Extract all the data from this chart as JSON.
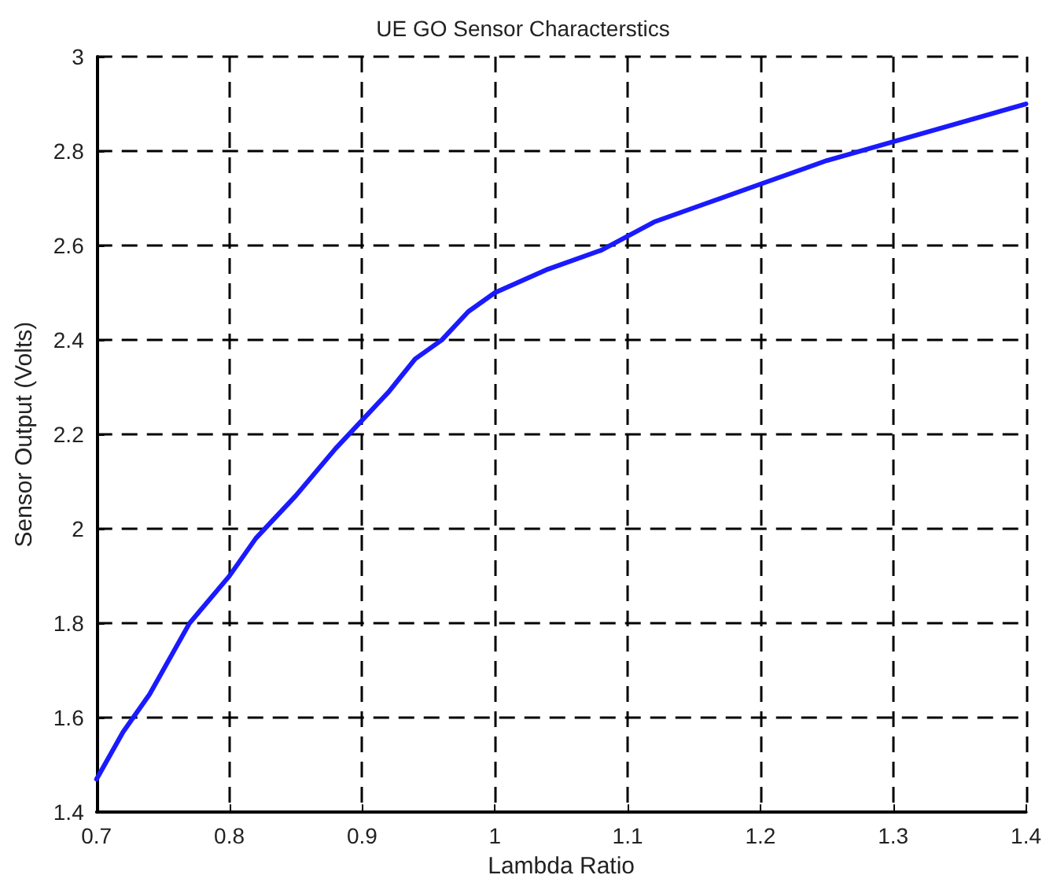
{
  "chart_data": {
    "type": "line",
    "title": "UE GO Sensor Characterstics",
    "xlabel": "Lambda Ratio",
    "ylabel": "Sensor Output (Volts)",
    "x": [
      0.7,
      0.72,
      0.74,
      0.77,
      0.8,
      0.82,
      0.85,
      0.88,
      0.9,
      0.92,
      0.94,
      0.96,
      0.98,
      1.0,
      1.04,
      1.08,
      1.12,
      1.16,
      1.2,
      1.25,
      1.3,
      1.35,
      1.4
    ],
    "series": [
      {
        "color": "#1a1aff",
        "values": [
          1.47,
          1.57,
          1.65,
          1.8,
          1.9,
          1.98,
          2.07,
          2.17,
          2.23,
          2.29,
          2.36,
          2.4,
          2.46,
          2.5,
          2.55,
          2.59,
          2.65,
          2.69,
          2.73,
          2.78,
          2.82,
          2.86,
          2.9
        ]
      }
    ],
    "xlim": [
      0.7,
      1.4
    ],
    "xticks": [
      0.7,
      0.8,
      0.9,
      1,
      1.1,
      1.2,
      1.3,
      1.4
    ],
    "ylim": [
      1.4,
      3
    ],
    "yticks": [
      1.4,
      1.6,
      1.8,
      2,
      2.2,
      2.4,
      2.6,
      2.8,
      3
    ],
    "grid": true,
    "marker": "none",
    "line_style": "solid"
  }
}
